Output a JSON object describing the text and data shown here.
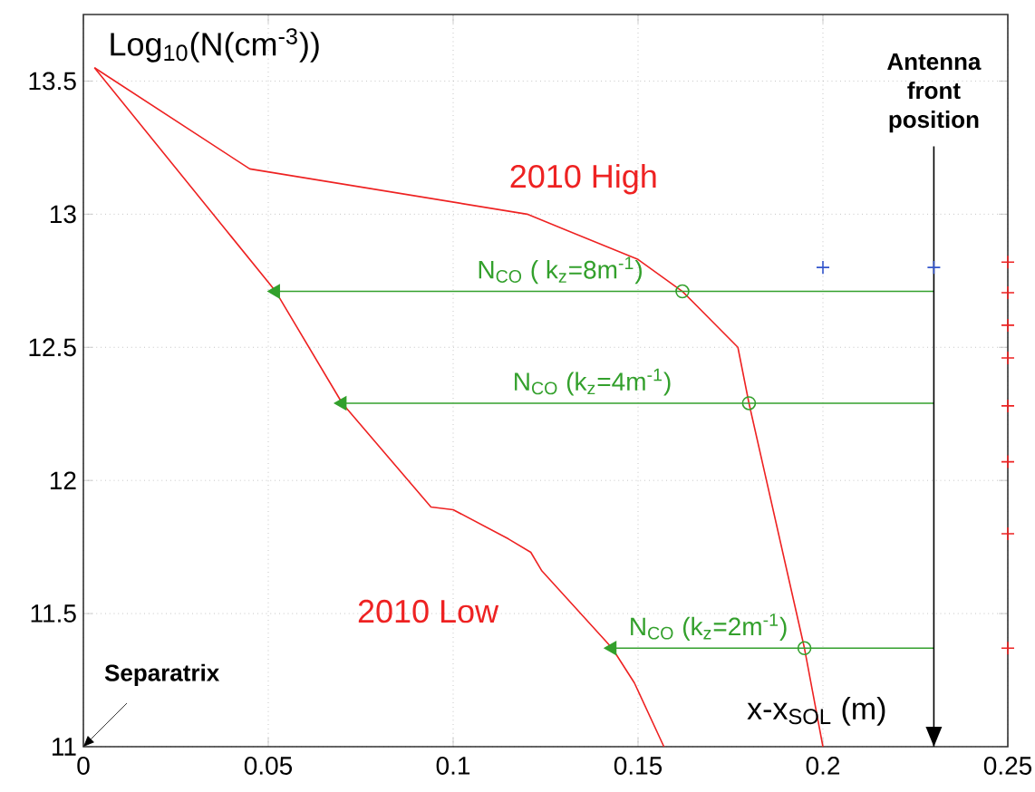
{
  "chart_data": {
    "type": "line",
    "xlabel": "x-x$_{SOL}$ (m)",
    "ylabel": "Log$_{10}$(N(cm$^{-3}$))",
    "xlim": [
      0,
      0.25
    ],
    "ylim": [
      11,
      13.75
    ],
    "xticks": [
      0,
      0.05,
      0.1,
      0.15,
      0.2,
      0.25
    ],
    "yticks": [
      11,
      11.5,
      12,
      12.5,
      13,
      13.5
    ],
    "grid": true,
    "series": [
      {
        "name": "2010 High",
        "color": "#ee2222",
        "x": [
          0.003,
          0.045,
          0.12,
          0.15,
          0.162,
          0.177,
          0.18,
          0.195,
          0.2
        ],
        "values": [
          13.55,
          13.17,
          13.0,
          12.83,
          12.71,
          12.5,
          12.29,
          11.37,
          11.0
        ]
      },
      {
        "name": "2010 Low",
        "color": "#ee2222",
        "x": [
          0.003,
          0.052,
          0.07,
          0.094,
          0.1,
          0.115,
          0.121,
          0.124,
          0.143,
          0.149,
          0.157
        ],
        "values": [
          13.55,
          12.71,
          12.29,
          11.9,
          11.89,
          11.78,
          11.73,
          11.66,
          11.37,
          11.24,
          11.0
        ]
      },
      {
        "name": "N$_{CO}$ ( k$_{z}$=8m$^{-1}$)",
        "marker": "triangle",
        "color": "#33a02c",
        "x": [
          0.23,
          0.052
        ],
        "values": [
          12.71,
          12.71
        ]
      },
      {
        "name": "N$_{CO}$ (k$_{z}$=4m$^{-1}$)",
        "marker": "triangle",
        "color": "#33a02c",
        "x": [
          0.23,
          0.07
        ],
        "values": [
          12.29,
          12.29
        ]
      },
      {
        "name": "N$_{CO}$ (k$_{z}$=2m$^{-1}$)",
        "marker": "triangle",
        "color": "#33a02c",
        "x": [
          0.23,
          0.143
        ],
        "values": [
          11.37,
          11.37
        ]
      },
      {
        "type": "scatter",
        "marker": "circle",
        "color": "#33a02c",
        "x": [
          0.162,
          0.18,
          0.195
        ],
        "values": [
          12.71,
          12.29,
          11.37
        ]
      },
      {
        "type": "scatter",
        "marker": "cross",
        "color": "#3355cc",
        "x": [
          0.2,
          0.23
        ],
        "values": [
          12.8,
          12.8
        ]
      },
      {
        "type": "scatter",
        "marker": "cross",
        "color": "#ee2222",
        "x": [
          0.25,
          0.25,
          0.25,
          0.25,
          0.25,
          0.25,
          0.25,
          0.25
        ],
        "values": [
          12.82,
          12.705,
          12.583,
          12.46,
          12.28,
          12.07,
          11.8,
          11.37
        ]
      }
    ],
    "ref_lines": [
      {
        "axis": "x",
        "value": 0.23,
        "label": "Antenna front position",
        "color": "#000000"
      }
    ],
    "annotations": [
      "Separatrix"
    ]
  }
}
